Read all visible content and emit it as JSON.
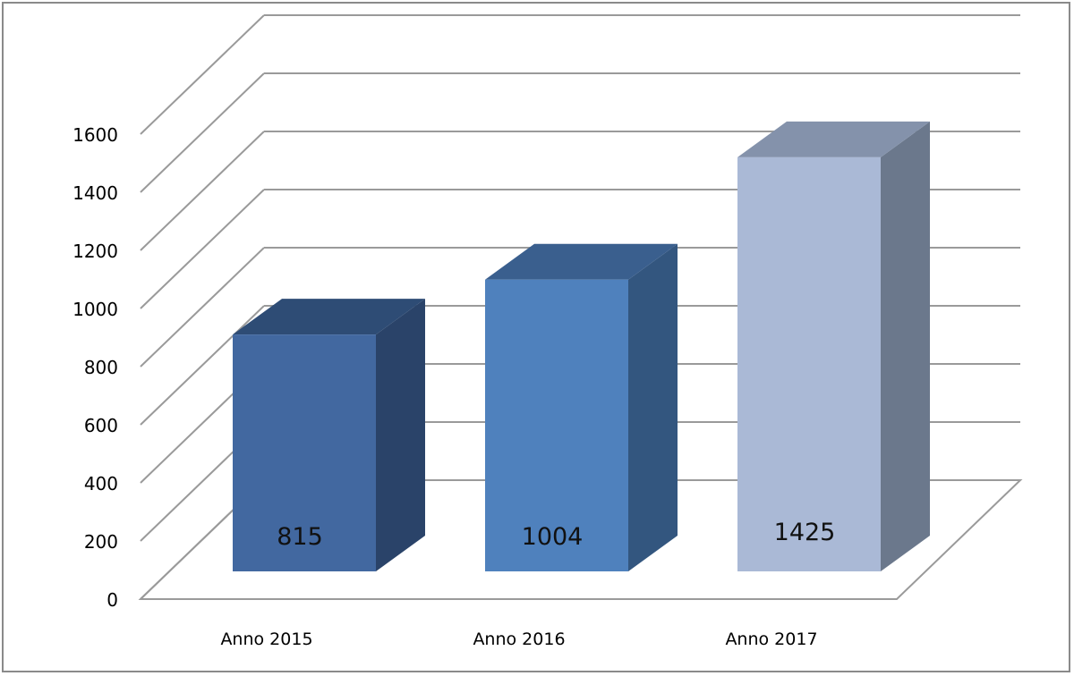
{
  "chart_data": {
    "type": "bar",
    "style": "3d-column",
    "categories": [
      "Anno 2015",
      "Anno 2016",
      "Anno 2017"
    ],
    "values": [
      815,
      1004,
      1425
    ],
    "data_labels": [
      "815",
      "1004",
      "1425"
    ],
    "ylim": [
      0,
      1600
    ],
    "yticks": [
      0,
      200,
      400,
      600,
      800,
      1000,
      1200,
      1400,
      1600
    ],
    "grid": true,
    "legend": "none",
    "colors": {
      "bars": [
        {
          "front": "#4268A0",
          "side": "#2A4369",
          "top": "#2E4C75"
        },
        {
          "front": "#4F81BD",
          "side": "#33567F",
          "top": "#3A5F8E"
        },
        {
          "front": "#AAB9D6",
          "side": "#6B788C",
          "top": "#8492AB"
        }
      ],
      "grid": "#9a9a9a",
      "frame": "#8a8a8a"
    }
  }
}
